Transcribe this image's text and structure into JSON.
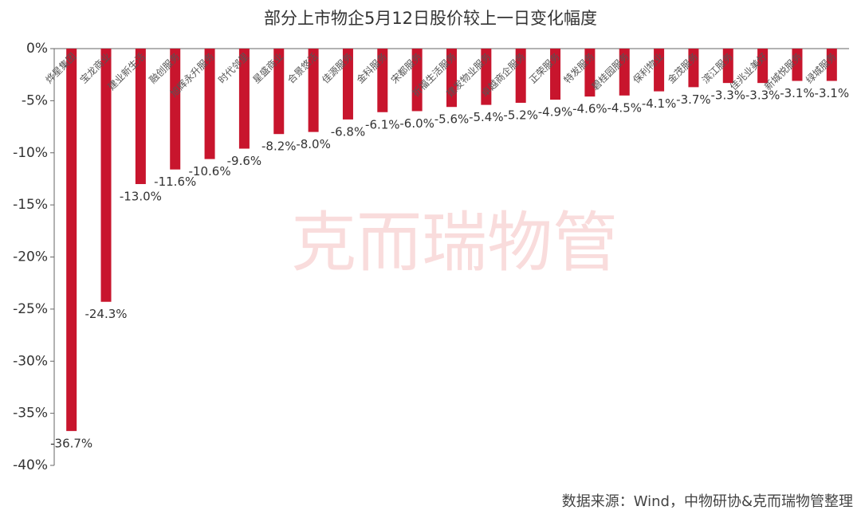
{
  "chart_data": {
    "type": "bar",
    "title": "部分上市物企5月12日股价较上一日变化幅度",
    "watermark": "克而瑞物管",
    "source": "数据来源：Wind，中物研协&克而瑞物管整理",
    "categories": [
      "烨星集团",
      "宝龙商业",
      "建业新生活",
      "融创服务",
      "旭辉永升服务",
      "时代邻里",
      "星盛商业",
      "合景悠活",
      "佳源服务",
      "金科服务",
      "宋都服务",
      "祈福生活服务",
      "建发物业服务",
      "卓越商企服务",
      "正荣服务",
      "特发服务",
      "碧桂园服务",
      "保利物业",
      "金茂服务",
      "滨江服务",
      "佳兆业美好",
      "新城悦服务",
      "绿城服务"
    ],
    "values": [
      -36.7,
      -24.3,
      -13.0,
      -11.6,
      -10.6,
      -9.6,
      -8.2,
      -8.0,
      -6.8,
      -6.1,
      -6.0,
      -5.6,
      -5.4,
      -5.2,
      -4.9,
      -4.6,
      -4.5,
      -4.1,
      -3.7,
      -3.3,
      -3.3,
      -3.1,
      -3.1
    ],
    "value_labels": [
      "-36.7%",
      "-24.3%",
      "-13.0%",
      "-11.6%",
      "-10.6%",
      "-9.6%",
      "-8.2%",
      "-8.0%",
      "-6.8%",
      "-6.1%",
      "-6.0%",
      "-5.6%",
      "-5.4%",
      "-5.2%",
      "-4.9%",
      "-4.6%",
      "-4.5%",
      "-4.1%",
      "-3.7%",
      "-3.3%",
      "-3.3%",
      "-3.1%",
      "-3.1%"
    ],
    "color": "#c8152d",
    "ylim": [
      -40,
      0
    ],
    "yticks": [
      {
        "value": 0,
        "label": "0%"
      },
      {
        "value": -5,
        "label": "-5%"
      },
      {
        "value": -10,
        "label": "-10%"
      },
      {
        "value": -15,
        "label": "-15%"
      },
      {
        "value": -20,
        "label": "-20%"
      },
      {
        "value": -25,
        "label": "-25%"
      },
      {
        "value": -30,
        "label": "-30%"
      },
      {
        "value": -35,
        "label": "-35%"
      },
      {
        "value": -40,
        "label": "-40%"
      }
    ]
  }
}
